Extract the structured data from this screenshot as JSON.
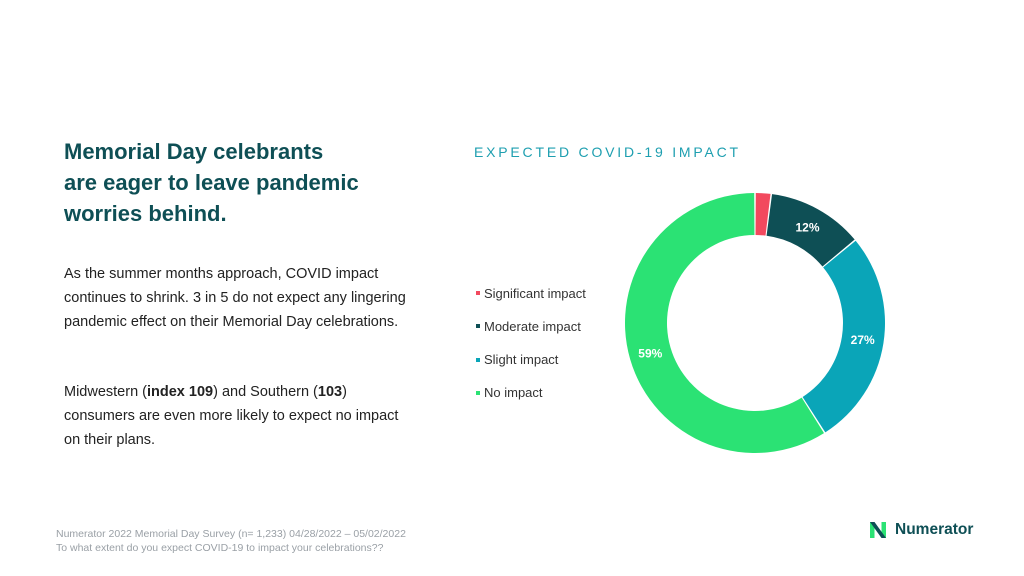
{
  "headline": {
    "lines": [
      "Memorial Day celebrants",
      "are eager to leave pandemic",
      "worries behind."
    ]
  },
  "body": {
    "paragraph1": "As the summer months approach, COVID impact continues to shrink. 3 in 5 do not expect any lingering pandemic effect on their Memorial Day celebrations.",
    "p2_a": "Midwestern (",
    "p2_b": "index 109",
    "p2_c": ") and Southern (",
    "p2_d": "103",
    "p2_e": ") consumers are even more likely to expect no impact on their plans."
  },
  "chart_data": {
    "type": "pie",
    "title": "EXPECTED COVID-19 IMPACT",
    "categories": [
      "Significant impact",
      "Moderate impact",
      "Slight impact",
      "No impact"
    ],
    "values": [
      2,
      12,
      27,
      59
    ],
    "labels": [
      "",
      "12%",
      "27%",
      "59%"
    ],
    "colors": [
      "#f2495e",
      "#0e4f55",
      "#0aa5b8",
      "#2be274"
    ],
    "donut": true
  },
  "footer": {
    "line1": "Numerator 2022 Memorial Day Survey (n= 1,233) 04/28/2022 – 05/02/2022",
    "line2": "To what extent do you expect COVID-19 to impact your celebrations??"
  },
  "logo": {
    "text": "Numerator",
    "icon": "numerator-n-icon"
  }
}
